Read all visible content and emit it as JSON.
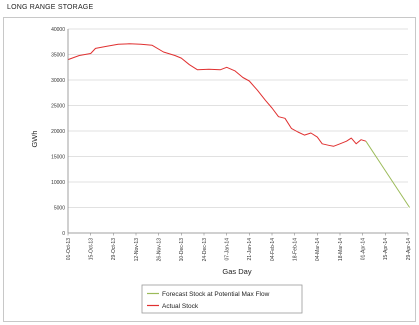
{
  "page": {
    "title": "LONG RANGE STORAGE"
  },
  "chart_data": {
    "type": "line",
    "title": "LONG RANGE STORAGE",
    "xlabel": "Gas Day",
    "ylabel": "GWh",
    "ylim": [
      0,
      40000
    ],
    "yticks": [
      0,
      5000,
      10000,
      15000,
      20000,
      25000,
      30000,
      35000,
      40000
    ],
    "grid": true,
    "legend_position": "bottom",
    "x_tick_labels": [
      "01-Oct-13",
      "15-Oct-13",
      "29-Oct-13",
      "12-Nov-13",
      "26-Nov-13",
      "10-Dec-13",
      "24-Dec-13",
      "07-Jan-14",
      "21-Jan-14",
      "04-Feb-14",
      "18-Feb-14",
      "04-Mar-14",
      "18-Mar-14",
      "01-Apr-14",
      "15-Apr-14",
      "29-Apr-14"
    ],
    "series": [
      {
        "name": "Forecast Stock at Potential Max Flow",
        "color": "#9bbb59",
        "points": [
          [
            "2014-04-03",
            18000
          ],
          [
            "2014-04-30",
            5000
          ]
        ]
      },
      {
        "name": "Actual Stock",
        "color": "#e03030",
        "points": [
          [
            "2013-10-01",
            34000
          ],
          [
            "2013-10-08",
            34800
          ],
          [
            "2013-10-15",
            35200
          ],
          [
            "2013-10-18",
            36200
          ],
          [
            "2013-10-25",
            36600
          ],
          [
            "2013-11-01",
            37000
          ],
          [
            "2013-11-08",
            37100
          ],
          [
            "2013-11-15",
            37000
          ],
          [
            "2013-11-22",
            36800
          ],
          [
            "2013-11-29",
            35500
          ],
          [
            "2013-12-06",
            34800
          ],
          [
            "2013-12-10",
            34300
          ],
          [
            "2013-12-15",
            33000
          ],
          [
            "2013-12-20",
            32000
          ],
          [
            "2013-12-27",
            32100
          ],
          [
            "2014-01-03",
            32000
          ],
          [
            "2014-01-07",
            32500
          ],
          [
            "2014-01-12",
            31800
          ],
          [
            "2014-01-17",
            30500
          ],
          [
            "2014-01-21",
            29800
          ],
          [
            "2014-01-26",
            28000
          ],
          [
            "2014-01-31",
            26000
          ],
          [
            "2014-02-04",
            24500
          ],
          [
            "2014-02-08",
            22800
          ],
          [
            "2014-02-12",
            22500
          ],
          [
            "2014-02-16",
            20500
          ],
          [
            "2014-02-20",
            19800
          ],
          [
            "2014-02-24",
            19200
          ],
          [
            "2014-02-28",
            19600
          ],
          [
            "2014-03-04",
            18800
          ],
          [
            "2014-03-07",
            17500
          ],
          [
            "2014-03-11",
            17200
          ],
          [
            "2014-03-14",
            17000
          ],
          [
            "2014-03-18",
            17500
          ],
          [
            "2014-03-22",
            18000
          ],
          [
            "2014-03-25",
            18600
          ],
          [
            "2014-03-28",
            17500
          ],
          [
            "2014-03-31",
            18300
          ],
          [
            "2014-04-03",
            18000
          ]
        ]
      }
    ]
  }
}
